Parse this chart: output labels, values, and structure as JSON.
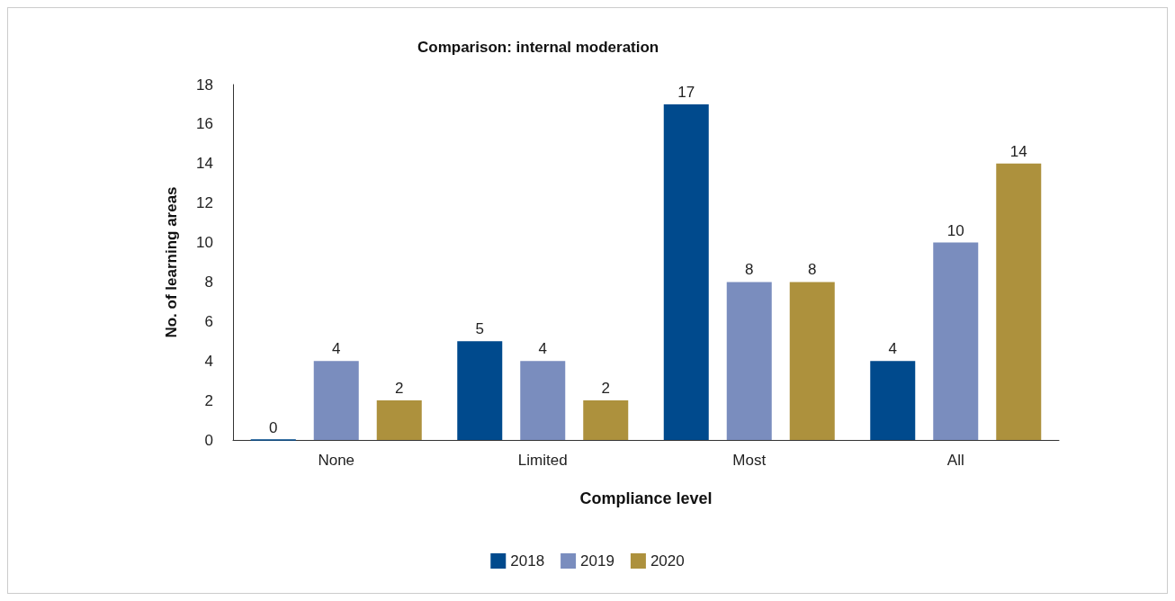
{
  "chart_data": {
    "type": "bar",
    "title": "Comparison: internal moderation",
    "xlabel": "Compliance level",
    "ylabel": "No. of learning areas",
    "categories": [
      "None",
      "Limited",
      "Most",
      "All"
    ],
    "series": [
      {
        "name": "2018",
        "color": "#004a8d",
        "values": [
          0,
          5,
          17,
          4
        ]
      },
      {
        "name": "2019",
        "color": "#7a8dbe",
        "values": [
          4,
          4,
          8,
          10
        ]
      },
      {
        "name": "2020",
        "color": "#ad913d",
        "values": [
          2,
          2,
          8,
          14
        ]
      }
    ],
    "ylim": [
      0,
      18
    ],
    "yticks": [
      0,
      2,
      4,
      6,
      8,
      10,
      12,
      14,
      16,
      18
    ],
    "grid": false,
    "legend": "bottom",
    "data_labels": true
  }
}
